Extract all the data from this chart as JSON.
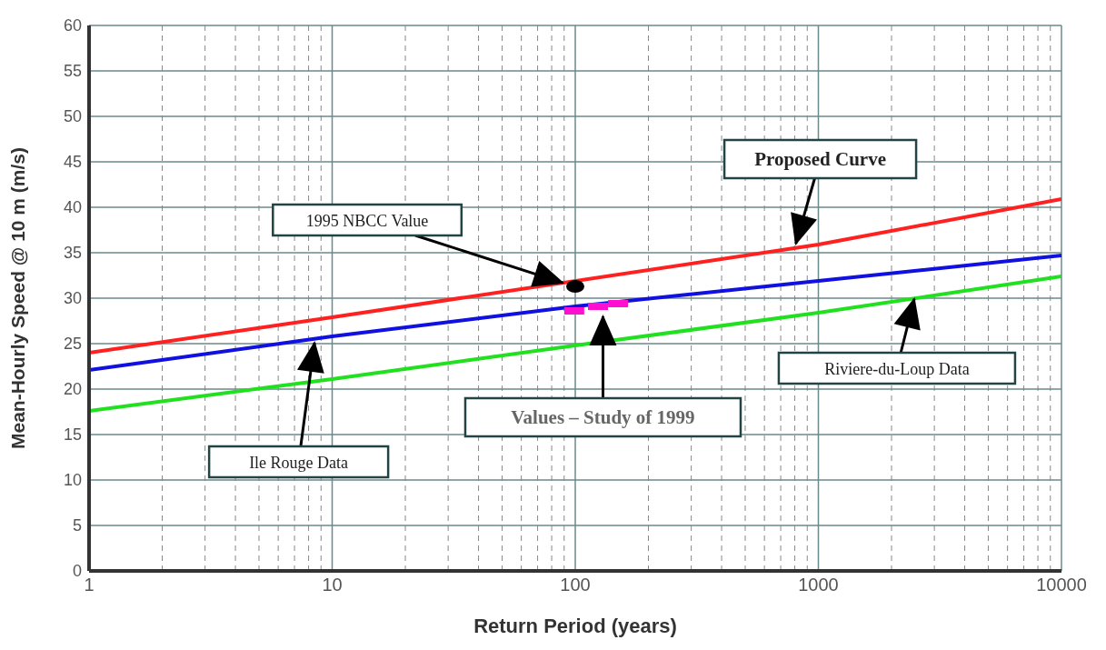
{
  "chart_data": {
    "type": "line",
    "xlabel": "Return Period (years)",
    "ylabel": "Mean-Hourly Speed @ 10 m (m/s)",
    "log": "x",
    "grid": true,
    "legend": false,
    "marker": "none",
    "line_style": "solid",
    "xlim": [
      1,
      10000
    ],
    "xticks": [
      1,
      10,
      100,
      1000,
      10000
    ],
    "ylim": [
      0,
      60
    ],
    "yticks": [
      0,
      5,
      10,
      15,
      20,
      25,
      30,
      35,
      40,
      45,
      50,
      55,
      60
    ],
    "series": [
      {
        "color": "#ff2020",
        "x": [
          1,
          10,
          1000,
          10000
        ],
        "values": [
          24.0,
          27.9,
          35.9,
          40.9
        ]
      },
      {
        "color": "#1010e0",
        "x": [
          1,
          10,
          100,
          1000,
          10000
        ],
        "values": [
          22.1,
          25.8,
          29.1,
          31.9,
          34.7
        ]
      },
      {
        "color": "#20e020",
        "x": [
          1,
          10,
          100,
          1000,
          10000
        ],
        "values": [
          17.6,
          21.1,
          24.8,
          28.4,
          32.4
        ]
      },
      {
        "type": "scatter",
        "marker": "square",
        "color": "#ff10d0",
        "x": [
          99,
          124,
          150
        ],
        "values": [
          28.6,
          29.1,
          29.4
        ]
      },
      {
        "type": "scatter",
        "marker": "circle",
        "color": "#000000",
        "x": [
          100
        ],
        "values": [
          31.3
        ]
      }
    ],
    "annotations": [
      {
        "text": "1995 NBCC Value",
        "x": 91,
        "y": 31.6
      },
      {
        "text": "Proposed Curve",
        "x": 800,
        "y": 35.6
      },
      {
        "text": "Ile Rouge Data",
        "x": 8.5,
        "y": 25.5
      },
      {
        "text": "Values – Study of 1999",
        "x": 130,
        "y": 28.4
      },
      {
        "text": "Riviere-du-Loup Data",
        "x": 2500,
        "y": 30.3
      }
    ]
  }
}
